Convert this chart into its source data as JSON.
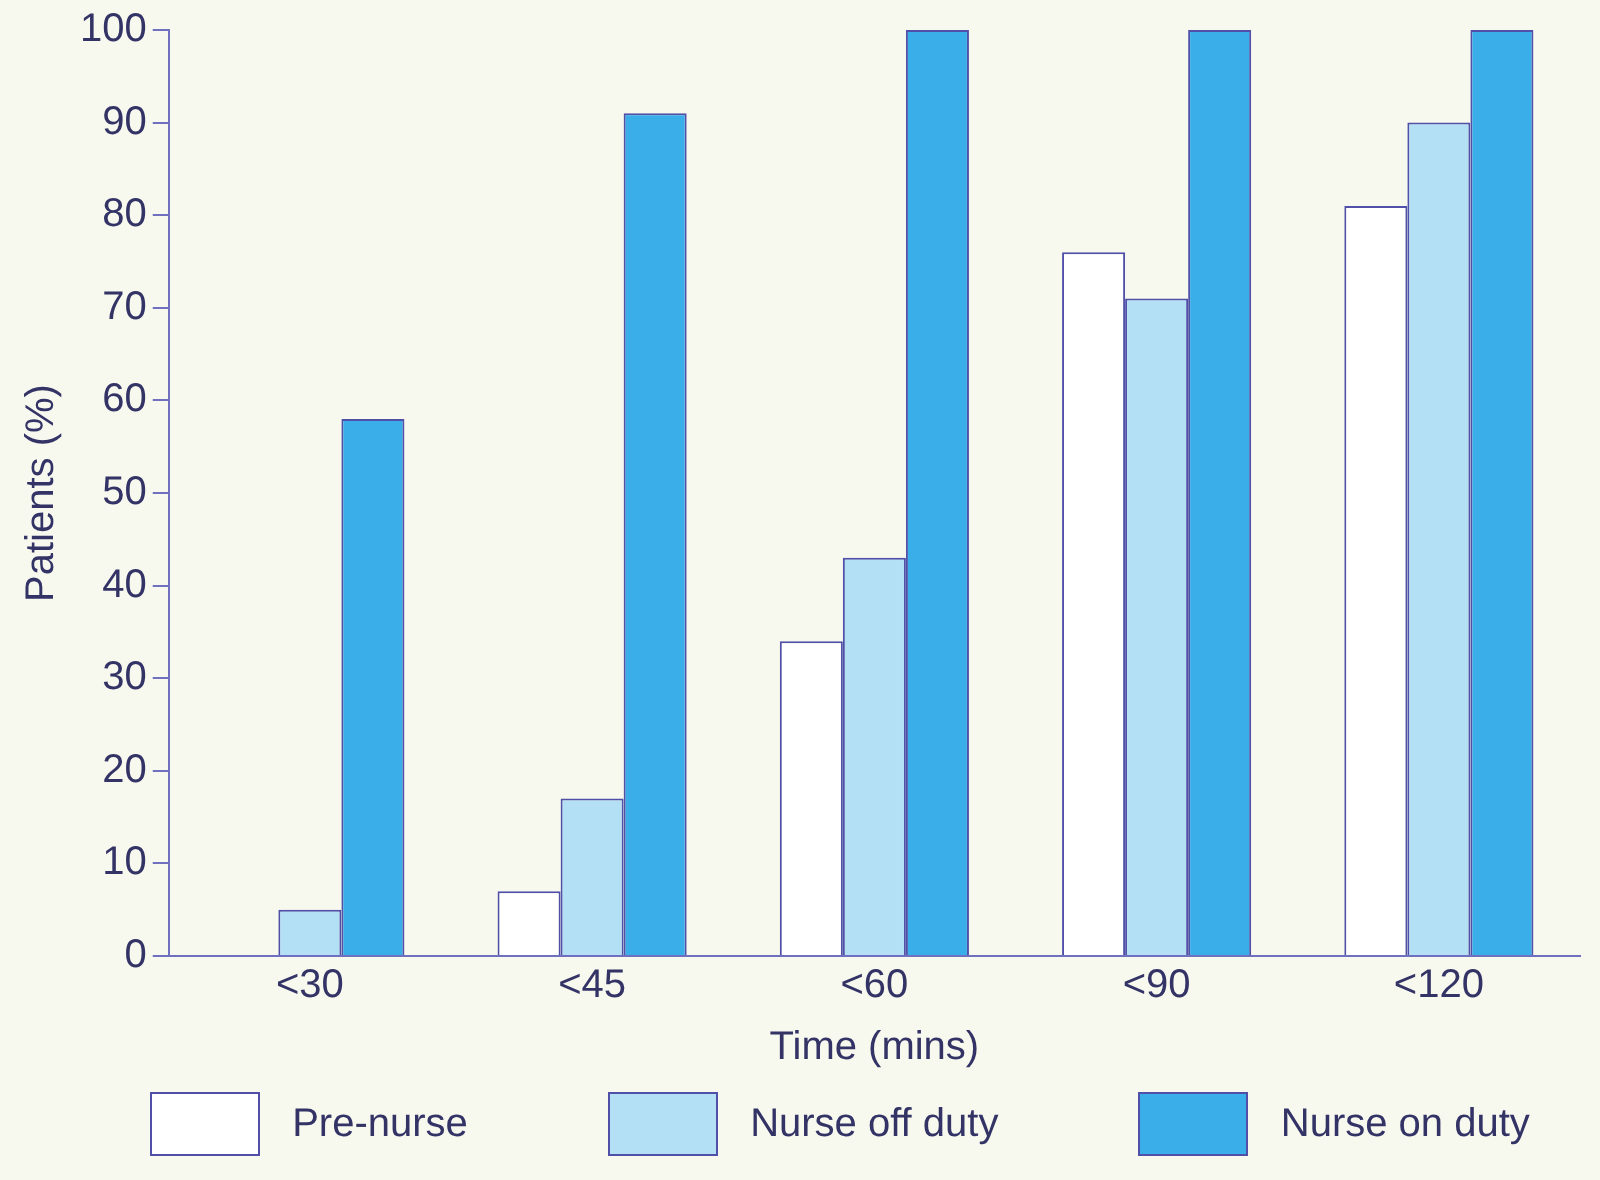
{
  "chart_data": {
    "type": "bar",
    "xlabel": "Time (mins)",
    "ylabel": "Patients (%)",
    "categories": [
      "<30",
      "<45",
      "<60",
      "<90",
      "<120"
    ],
    "series": [
      {
        "name": "Pre-nurse",
        "color": "#ffffff",
        "values": [
          0,
          7,
          34,
          76,
          81
        ]
      },
      {
        "name": "Nurse off duty",
        "color": "#b3e0f5",
        "values": [
          5,
          17,
          43,
          71,
          90
        ]
      },
      {
        "name": "Nurse on duty",
        "color": "#3aaee8",
        "values": [
          58,
          91,
          100,
          100,
          100
        ]
      }
    ],
    "ylim": [
      0,
      100
    ],
    "yticks": [
      0,
      10,
      20,
      30,
      40,
      50,
      60,
      70,
      80,
      90,
      100
    ],
    "grid": false,
    "legend": "bottom"
  }
}
